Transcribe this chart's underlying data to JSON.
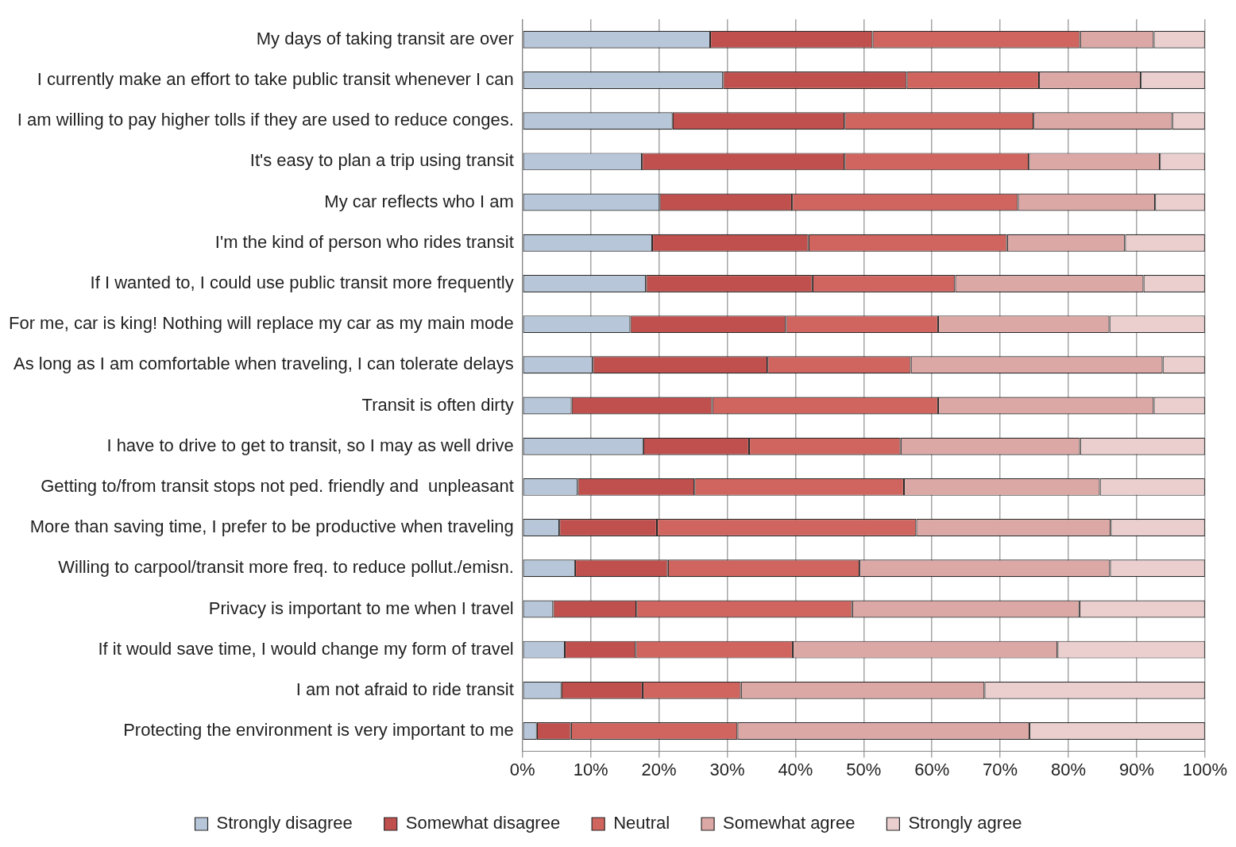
{
  "chart_data": {
    "type": "bar",
    "orientation": "horizontal",
    "stacked": true,
    "grid": "x",
    "legend": "bottom",
    "categories": [
      "My days of taking transit are over",
      "I currently make an effort to take public transit whenever I can",
      "I am willing to pay higher tolls if they are used to reduce conges.",
      "It's easy to plan a trip using transit",
      "My car reflects who I am",
      "I'm the kind of person who rides transit",
      "If I wanted to, I could use public transit more frequently",
      "For me, car is king! Nothing will replace my car as my main mode",
      "As long as I am comfortable when traveling, I can tolerate delays",
      "Transit is often dirty",
      "I have to drive to get to transit, so I may as well drive",
      "Getting to/from transit stops not ped. friendly and  unpleasant",
      "More than saving time, I prefer to be productive when traveling",
      "Willing to carpool/transit more freq. to reduce pollut./emisn.",
      "Privacy is important to me when I travel",
      "If it would save time, I would change my form of travel",
      "I am not afraid to ride transit",
      "Protecting the environment is very important to me"
    ],
    "series": [
      {
        "name": "Strongly disagree",
        "color": "#b7c7d9",
        "values": [
          27.5,
          29.4,
          22.0,
          17.5,
          20.1,
          19.0,
          18.1,
          15.8,
          10.3,
          7.2,
          17.7,
          8.1,
          5.4,
          7.7,
          4.5,
          6.2,
          5.7,
          2.1
        ]
      },
      {
        "name": "Somewhat disagree",
        "color": "#c0504d",
        "values": [
          23.8,
          26.9,
          25.2,
          29.7,
          19.4,
          22.9,
          24.4,
          22.8,
          25.6,
          20.6,
          15.5,
          17.1,
          14.3,
          13.6,
          12.2,
          10.4,
          11.9,
          5.0
        ]
      },
      {
        "name": "Neutral",
        "color": "#d0645e",
        "values": [
          30.4,
          19.4,
          27.7,
          27.0,
          33.1,
          29.1,
          20.9,
          22.3,
          21.0,
          33.1,
          22.2,
          30.7,
          38.0,
          28.1,
          31.6,
          23.0,
          14.4,
          24.4
        ]
      },
      {
        "name": "Somewhat agree",
        "color": "#dca8a6",
        "values": [
          10.8,
          14.9,
          20.3,
          19.2,
          20.1,
          17.3,
          27.6,
          25.1,
          36.9,
          31.6,
          26.3,
          28.7,
          28.5,
          36.7,
          33.3,
          38.8,
          35.7,
          42.8
        ]
      },
      {
        "name": "Strongly agree",
        "color": "#ebcfcf",
        "values": [
          7.5,
          9.4,
          4.8,
          6.6,
          7.3,
          11.7,
          9.0,
          14.0,
          6.2,
          7.5,
          18.3,
          15.4,
          13.8,
          13.9,
          18.4,
          21.6,
          32.3,
          25.7
        ]
      }
    ],
    "xlim": [
      0,
      100
    ],
    "xticks": [
      {
        "value": 0,
        "label": "0%"
      },
      {
        "value": 10,
        "label": "10%"
      },
      {
        "value": 20,
        "label": "20%"
      },
      {
        "value": 30,
        "label": "30%"
      },
      {
        "value": 40,
        "label": "40%"
      },
      {
        "value": 50,
        "label": "50%"
      },
      {
        "value": 60,
        "label": "60%"
      },
      {
        "value": 70,
        "label": "70%"
      },
      {
        "value": 80,
        "label": "80%"
      },
      {
        "value": 90,
        "label": "90%"
      },
      {
        "value": 100,
        "label": "100%"
      }
    ]
  }
}
